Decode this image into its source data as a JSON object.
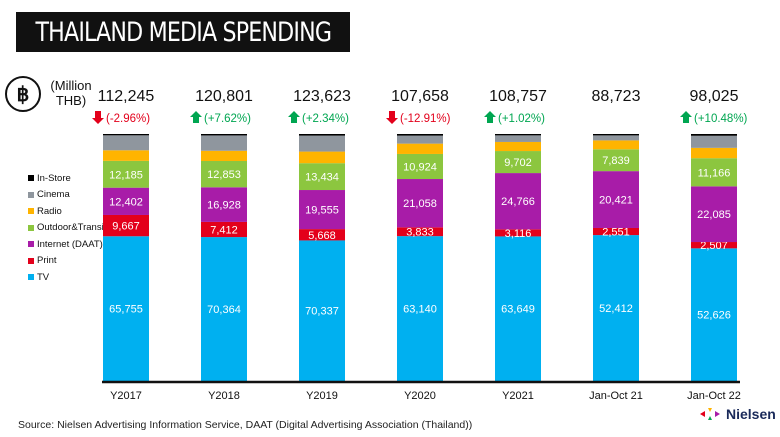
{
  "title": "THAILAND MEDIA SPENDING",
  "unit_label": "(Million THB)",
  "currency_icon": "baht-icon",
  "source": "Source: Nielsen Advertising Information Service, DAAT (Digital Advertising Association (Thailand))",
  "logo_text": "Nielsen",
  "chart_data": {
    "type": "bar",
    "stacked": true,
    "normalized_display": true,
    "legend_position": "left",
    "categories": [
      "Y2017",
      "Y2018",
      "Y2019",
      "Y2020",
      "Y2021",
      "Jan-Oct 21",
      "Jan-Oct 22"
    ],
    "totals": [
      "112,245",
      "120,801",
      "123,623",
      "107,658",
      "108,757",
      "88,723",
      "98,025"
    ],
    "changes": [
      {
        "text": "(-2.96%)",
        "dir": "down"
      },
      {
        "text": "(+7.62%)",
        "dir": "up"
      },
      {
        "text": "(+2.34%)",
        "dir": "up"
      },
      {
        "text": "(-12.91%)",
        "dir": "down"
      },
      {
        "text": "(+1.02%)",
        "dir": "up"
      },
      {
        "text": "",
        "dir": "none"
      },
      {
        "text": "(+10.48%)",
        "dir": "up"
      }
    ],
    "series": [
      {
        "name": "TV",
        "color": "#00b0f0",
        "labeled": true,
        "values": [
          65755,
          70364,
          70337,
          63140,
          63649,
          52412,
          52626
        ]
      },
      {
        "name": "Print",
        "color": "#e3001b",
        "labeled": true,
        "values": [
          9667,
          7412,
          5668,
          3833,
          3116,
          2551,
          2507
        ]
      },
      {
        "name": "Internet (DAAT)",
        "color": "#a81ca8",
        "labeled": true,
        "values": [
          12402,
          16928,
          19555,
          21058,
          24766,
          20421,
          22085
        ]
      },
      {
        "name": "Outdoor&Transit",
        "color": "#8cc63f",
        "labeled": true,
        "values": [
          12185,
          12853,
          13434,
          10924,
          9702,
          7839,
          11166
        ]
      },
      {
        "name": "Radio",
        "color": "#ffb400",
        "labeled": false,
        "values": [
          4800,
          5000,
          5800,
          4500,
          4000,
          3200,
          4100
        ]
      },
      {
        "name": "Cinema",
        "color": "#8f969e",
        "labeled": false,
        "values": [
          6800,
          7500,
          8000,
          3500,
          2900,
          1800,
          4800
        ]
      },
      {
        "name": "In-Store",
        "color": "#000000",
        "labeled": false,
        "values": [
          600,
          700,
          800,
          700,
          600,
          500,
          700
        ]
      }
    ],
    "colors": {
      "up": "#00a651",
      "down": "#e3001b"
    }
  }
}
